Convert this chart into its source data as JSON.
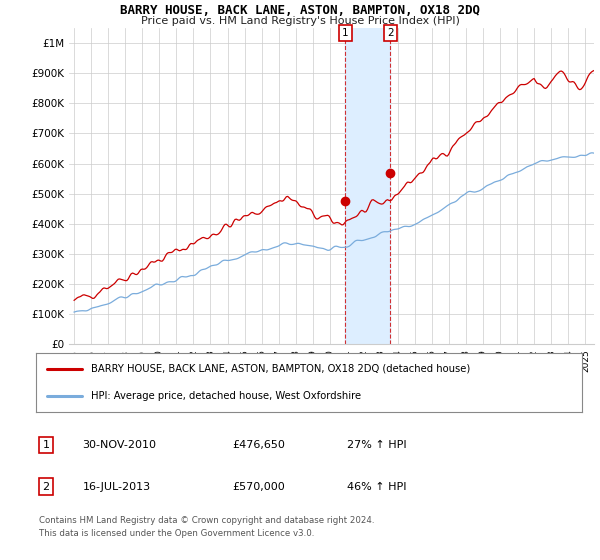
{
  "title": "BARRY HOUSE, BACK LANE, ASTON, BAMPTON, OX18 2DQ",
  "subtitle": "Price paid vs. HM Land Registry's House Price Index (HPI)",
  "ylabel_ticks": [
    "£0",
    "£100K",
    "£200K",
    "£300K",
    "£400K",
    "£500K",
    "£600K",
    "£700K",
    "£800K",
    "£900K",
    "£1M"
  ],
  "ytick_values": [
    0,
    100000,
    200000,
    300000,
    400000,
    500000,
    600000,
    700000,
    800000,
    900000,
    1000000
  ],
  "ylim": [
    0,
    1050000
  ],
  "xlim_start": 1994.7,
  "xlim_end": 2025.5,
  "sale1_x": 2010.92,
  "sale1_y": 476650,
  "sale1_label": "1",
  "sale2_x": 2013.54,
  "sale2_y": 570000,
  "sale2_label": "2",
  "red_line_color": "#cc0000",
  "blue_line_color": "#7aacdc",
  "shade_color": "#ddeeff",
  "legend_red_label": "BARRY HOUSE, BACK LANE, ASTON, BAMPTON, OX18 2DQ (detached house)",
  "legend_blue_label": "HPI: Average price, detached house, West Oxfordshire",
  "table_row1": [
    "1",
    "30-NOV-2010",
    "£476,650",
    "27% ↑ HPI"
  ],
  "table_row2": [
    "2",
    "16-JUL-2013",
    "£570,000",
    "46% ↑ HPI"
  ],
  "footer": "Contains HM Land Registry data © Crown copyright and database right 2024.\nThis data is licensed under the Open Government Licence v3.0.",
  "background_color": "#ffffff",
  "grid_color": "#cccccc"
}
